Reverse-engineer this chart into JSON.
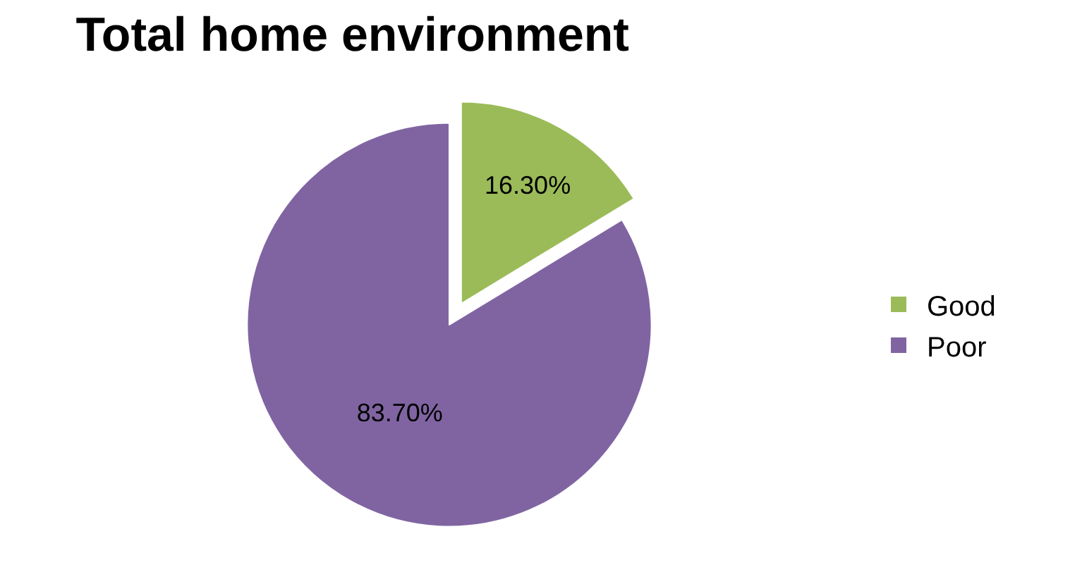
{
  "chart_data": {
    "type": "pie",
    "title": "Total home environment",
    "categories": [
      "Good",
      "Poor"
    ],
    "values": [
      16.3,
      83.7
    ],
    "value_labels": [
      "16.30%",
      "83.70%"
    ],
    "colors": [
      "#9bbb59",
      "#8064a2"
    ],
    "legend": "right"
  }
}
